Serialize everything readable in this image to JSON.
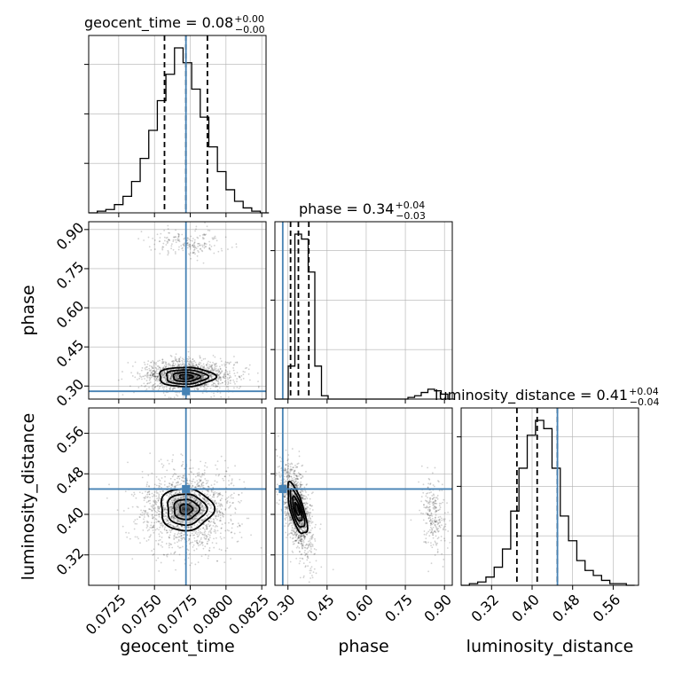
{
  "chart_data": {
    "type": "corner",
    "parameters": [
      "geocent_time",
      "phase",
      "luminosity_distance"
    ],
    "axis_labels": [
      "geocent_time",
      "phase",
      "luminosity_distance"
    ],
    "ranges": [
      [
        0.0704,
        0.0828
      ],
      [
        0.25,
        0.93
      ],
      [
        0.26,
        0.61
      ]
    ],
    "ticks": {
      "geocent_time": [
        "0.0725",
        "0.0750",
        "0.0775",
        "0.0800",
        "0.0825"
      ],
      "phase": [
        "0.30",
        "0.45",
        "0.60",
        "0.75",
        "0.90"
      ],
      "luminosity_distance": [
        "0.32",
        "0.40",
        "0.48",
        "0.56"
      ]
    },
    "tick_values": {
      "geocent_time": [
        0.0725,
        0.075,
        0.0775,
        0.08,
        0.0825
      ],
      "phase": [
        0.3,
        0.45,
        0.6,
        0.75,
        0.9
      ],
      "luminosity_distance": [
        0.32,
        0.4,
        0.48,
        0.56
      ]
    },
    "titles": [
      {
        "param": "geocent_time",
        "text": "geocent_time = 0.08",
        "sup": "+0.00",
        "sub": "−0.00"
      },
      {
        "param": "phase",
        "text": "phase = 0.34",
        "sup": "+0.04",
        "sub": "−0.03"
      },
      {
        "param": "luminosity_distance",
        "text": "luminosity_distance = 0.41",
        "sup": "+0.04",
        "sub": "−0.04"
      }
    ],
    "truths": {
      "geocent_time": 0.0772,
      "phase": 0.28,
      "luminosity_distance": 0.45
    },
    "quantiles": {
      "geocent_time": [
        0.0757,
        0.0772,
        0.0787
      ],
      "phase": [
        0.31,
        0.34,
        0.38
      ],
      "luminosity_distance": [
        0.37,
        0.41,
        0.45
      ]
    },
    "histograms": {
      "geocent_time": {
        "bin_start": 0.0704,
        "bin_width": 0.0006,
        "counts": [
          0,
          1,
          2,
          5,
          10,
          19,
          33,
          50,
          68,
          84,
          100,
          91,
          75,
          58,
          40,
          25,
          14,
          7,
          3,
          1,
          0
        ]
      },
      "phase": {
        "bin_start": 0.25,
        "bin_width": 0.0255,
        "counts": [
          0,
          0,
          20,
          100,
          97,
          77,
          20,
          2,
          0,
          0,
          0,
          0,
          0,
          0,
          0,
          0,
          0,
          0,
          0,
          0,
          1,
          2,
          4,
          6,
          5,
          3,
          0
        ]
      },
      "luminosity_distance": {
        "bin_start": 0.26,
        "bin_width": 0.0163,
        "counts": [
          0,
          1,
          2,
          5,
          11,
          22,
          45,
          71,
          91,
          100,
          95,
          71,
          42,
          27,
          15,
          9,
          6,
          3,
          1,
          1,
          0
        ]
      }
    },
    "grid": true
  }
}
